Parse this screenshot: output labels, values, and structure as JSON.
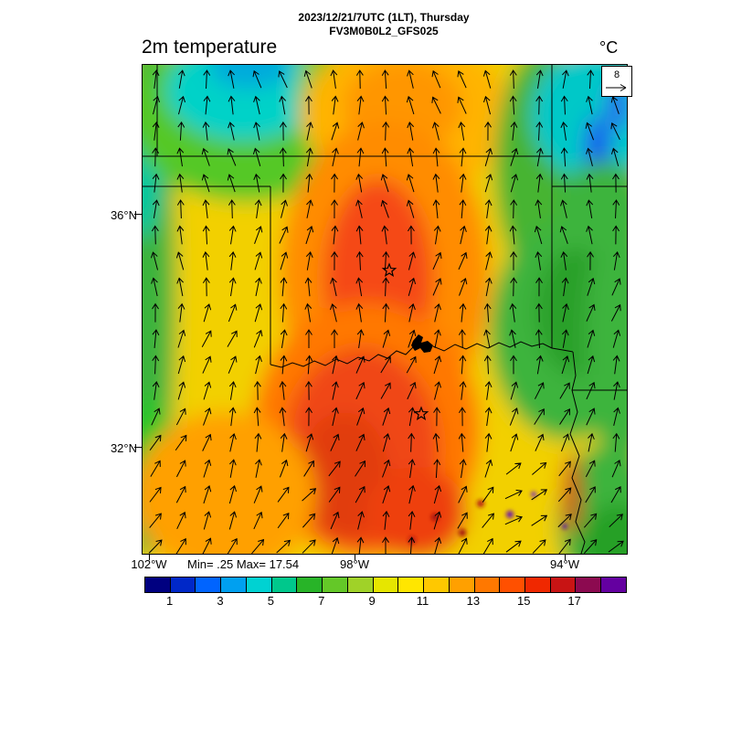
{
  "header": {
    "datetime": "2023/12/21/7UTC (1LT), Thursday",
    "model": "FV3M0B0L2_GFS025",
    "variable": "2m temperature",
    "units": "°C"
  },
  "map": {
    "lat_ticks": [
      "36°N",
      "32°N"
    ],
    "lon_ticks": [
      "102°W",
      "98°W",
      "94°W"
    ],
    "stats": "Min= .25 Max= 17.54",
    "wind_reference": "8"
  },
  "colorbar": {
    "labels": [
      "1",
      "3",
      "5",
      "7",
      "9",
      "11",
      "13",
      "15",
      "17"
    ],
    "min_value": 0,
    "max_value": 19,
    "colors": [
      "#000080",
      "#0028c8",
      "#0064ff",
      "#00a0f0",
      "#00d2d2",
      "#00c88c",
      "#28b428",
      "#64c828",
      "#a0d228",
      "#e6e600",
      "#ffe600",
      "#ffc800",
      "#ffa000",
      "#ff7800",
      "#ff5000",
      "#f02800",
      "#c81414",
      "#8c0a50",
      "#6400a0"
    ]
  },
  "chart_data": {
    "type": "heatmap",
    "title": "2m temperature",
    "units": "°C",
    "valid_time": "2023/12/21/7UTC (1LT), Thursday",
    "model": "FV3M0B0L2_GFS025",
    "min": 0.25,
    "max": 17.54,
    "colorbar_levels": [
      1,
      3,
      5,
      7,
      9,
      11,
      13,
      15,
      17
    ],
    "lat_labels": [
      "36°N",
      "32°N"
    ],
    "lon_labels": [
      "102°W",
      "98°W",
      "94°W"
    ],
    "wind_reference_value": 8,
    "legend_position": "bottom",
    "notes": "Temperature shaded field over the southern-plains region (Oklahoma/Texas) with wind vector arrows; warm red core through central Texas/Oklahoma, cooler green/cyan along west edge, northwest panhandle and east of the domain"
  }
}
